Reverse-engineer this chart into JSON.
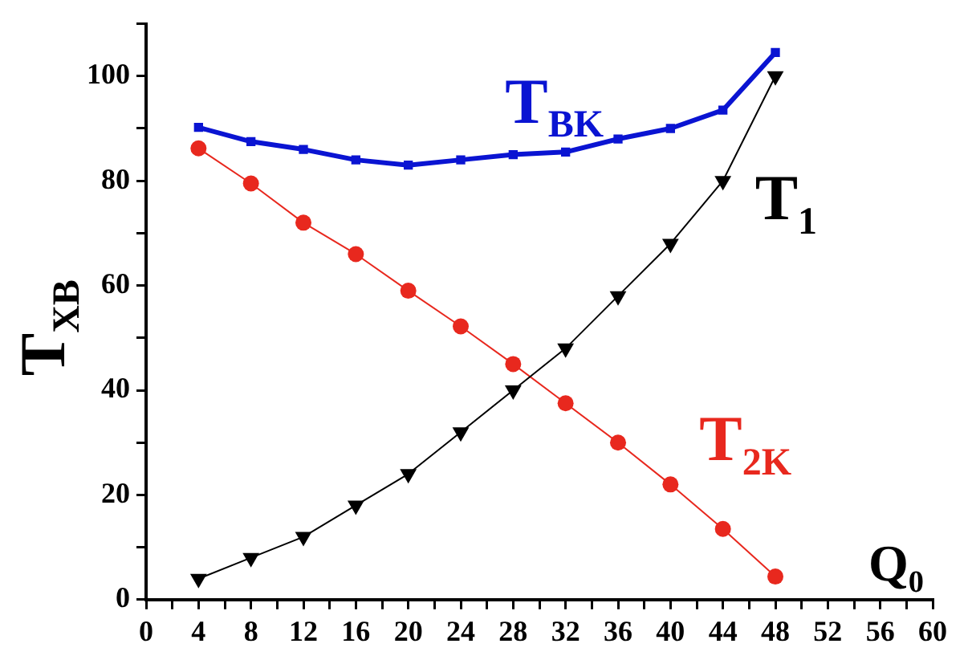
{
  "chart_data": {
    "type": "line",
    "xlabel": "Q$_{0}$",
    "ylabel": "T$_{XB}$",
    "x": [
      4,
      8,
      12,
      16,
      20,
      24,
      28,
      32,
      36,
      40,
      44,
      48
    ],
    "series": [
      {
        "name": "T$_{BK}$",
        "color": "#0a14d2",
        "marker": "square",
        "values": [
          90.2,
          87.5,
          86,
          84,
          83,
          84,
          85,
          85.5,
          88,
          90,
          93.5,
          104.5
        ]
      },
      {
        "name": "T$_{1}$",
        "color": "#000000",
        "marker": "triangle",
        "values": [
          4,
          8,
          12,
          18,
          24,
          32,
          40,
          48,
          58,
          68,
          80,
          100
        ]
      },
      {
        "name": "T$_{2K}$",
        "color": "#e8281e",
        "marker": "circle",
        "values": [
          86.2,
          79.5,
          72,
          66,
          59,
          52.2,
          45,
          37.5,
          30,
          22,
          13.5,
          4.4
        ]
      }
    ],
    "xlim": [
      0,
      60
    ],
    "xticks": [
      0,
      {
        "value": 2,
        "label": null
      },
      4,
      {
        "value": 6,
        "label": null
      },
      8,
      {
        "value": 10,
        "label": null
      },
      12,
      {
        "value": 14,
        "label": null
      },
      16,
      {
        "value": 18,
        "label": null
      },
      20,
      {
        "value": 22,
        "label": null
      },
      24,
      {
        "value": 26,
        "label": null
      },
      28,
      {
        "value": 30,
        "label": null
      },
      32,
      {
        "value": 34,
        "label": null
      },
      36,
      {
        "value": 38,
        "label": null
      },
      40,
      {
        "value": 42,
        "label": null
      },
      44,
      {
        "value": 46,
        "label": null
      },
      48,
      {
        "value": 50,
        "label": null
      },
      52,
      {
        "value": 54,
        "label": null
      },
      56,
      {
        "value": 58,
        "label": null
      },
      60
    ],
    "ylim": [
      0,
      110
    ],
    "yticks": [
      0,
      {
        "value": 10,
        "label": null
      },
      20,
      {
        "value": 30,
        "label": null
      },
      40,
      {
        "value": 50,
        "label": null
      },
      60,
      {
        "value": 70,
        "label": null
      },
      80,
      {
        "value": 90,
        "label": null
      },
      100,
      {
        "value": 110,
        "label": null
      }
    ],
    "grid": false,
    "legend": false
  }
}
